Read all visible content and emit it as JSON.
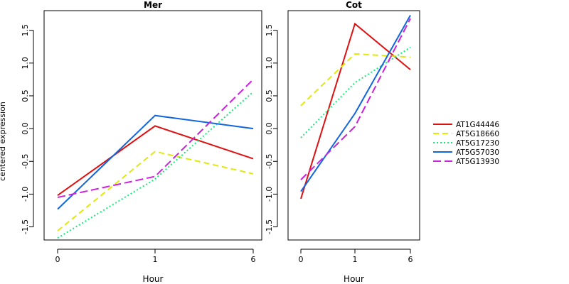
{
  "chart_data": {
    "type": "line",
    "ylabel": "centered expression",
    "colors": {
      "AT1G44446": "#dd1111",
      "AT5G18660": "#e0e80c",
      "AT5G17230": "#11ee77",
      "AT5G57030": "#1166dd",
      "AT5G13930": "#cc22dd"
    },
    "legend": {
      "position": "right",
      "entries": [
        {
          "name": "AT1G44446",
          "dash": "solid"
        },
        {
          "name": "AT5G18660",
          "dash": "dashed"
        },
        {
          "name": "AT5G17230",
          "dash": "dotted"
        },
        {
          "name": "AT5G57030",
          "dash": "solid"
        },
        {
          "name": "AT5G13930",
          "dash": "longdash"
        }
      ]
    },
    "panels": [
      {
        "title": "Mer",
        "xlabel": "Hour",
        "categories": [
          "0",
          "1",
          "6"
        ],
        "ylim": [
          -1.7,
          1.8
        ],
        "yticks": [
          -1.5,
          -1.0,
          -0.5,
          0.0,
          0.5,
          1.0,
          1.5
        ],
        "grid": false,
        "series": [
          {
            "name": "AT1G44446",
            "values": [
              -1.02,
              0.04,
              -0.46
            ]
          },
          {
            "name": "AT5G18660",
            "values": [
              -1.56,
              -0.35,
              -0.69
            ]
          },
          {
            "name": "AT5G17230",
            "values": [
              -1.67,
              -0.77,
              0.56
            ]
          },
          {
            "name": "AT5G57030",
            "values": [
              -1.23,
              0.2,
              0.0
            ]
          },
          {
            "name": "AT5G13930",
            "values": [
              -1.05,
              -0.73,
              0.75
            ]
          }
        ]
      },
      {
        "title": "Cot",
        "xlabel": "Hour",
        "categories": [
          "0",
          "1",
          "6"
        ],
        "ylim": [
          -1.7,
          1.8
        ],
        "yticks": [
          -1.5,
          -1.0,
          -0.5,
          0.0,
          0.5,
          1.0,
          1.5
        ],
        "grid": false,
        "series": [
          {
            "name": "AT1G44446",
            "values": [
              -1.07,
              1.6,
              0.9
            ]
          },
          {
            "name": "AT5G18660",
            "values": [
              0.35,
              1.14,
              1.09
            ]
          },
          {
            "name": "AT5G17230",
            "values": [
              -0.14,
              0.7,
              1.24
            ]
          },
          {
            "name": "AT5G57030",
            "values": [
              -0.96,
              0.23,
              1.73
            ]
          },
          {
            "name": "AT5G13930",
            "values": [
              -0.78,
              0.03,
              1.68
            ]
          }
        ]
      }
    ],
    "ytick_labels": [
      "-1.5",
      "-1.0",
      "-0.5",
      "0.0",
      "0.5",
      "1.0",
      "1.5"
    ]
  }
}
